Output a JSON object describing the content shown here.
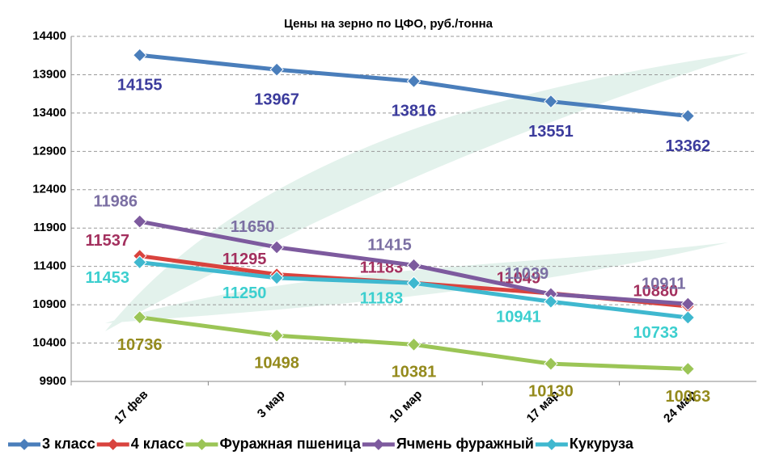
{
  "chart_data": {
    "type": "line",
    "title": "Цены на зерно по ЦФО, руб./тонна",
    "categories": [
      "17 фев",
      "3 мар",
      "10 мар",
      "17 мар",
      "24 мар"
    ],
    "series": [
      {
        "name": "3 класс",
        "color": "#4a7ebb",
        "label_color": "#3b3b9c",
        "values": [
          14155,
          13967,
          13816,
          13551,
          13362
        ]
      },
      {
        "name": "4 класс",
        "color": "#d9433e",
        "label_color": "#a3305e",
        "values": [
          11537,
          11295,
          11183,
          11049,
          10880
        ]
      },
      {
        "name": "Фуражная пшеница",
        "color": "#9bc556",
        "label_color": "#948a1c",
        "values": [
          10736,
          10498,
          10381,
          10130,
          10063
        ]
      },
      {
        "name": "Ячмень фуражный",
        "color": "#7d5a9e",
        "label_color": "#7b6fa3",
        "values": [
          11986,
          11650,
          11415,
          11039,
          10911
        ]
      },
      {
        "name": "Кукуруза",
        "color": "#3fb8cf",
        "label_color": "#3ccfcf",
        "values": [
          11453,
          11250,
          11183,
          10941,
          10733
        ]
      }
    ],
    "ylim": [
      9900,
      14400
    ],
    "yticks": [
      9900,
      10400,
      10900,
      11400,
      11900,
      12400,
      12900,
      13400,
      13900,
      14400
    ],
    "grid": true
  }
}
